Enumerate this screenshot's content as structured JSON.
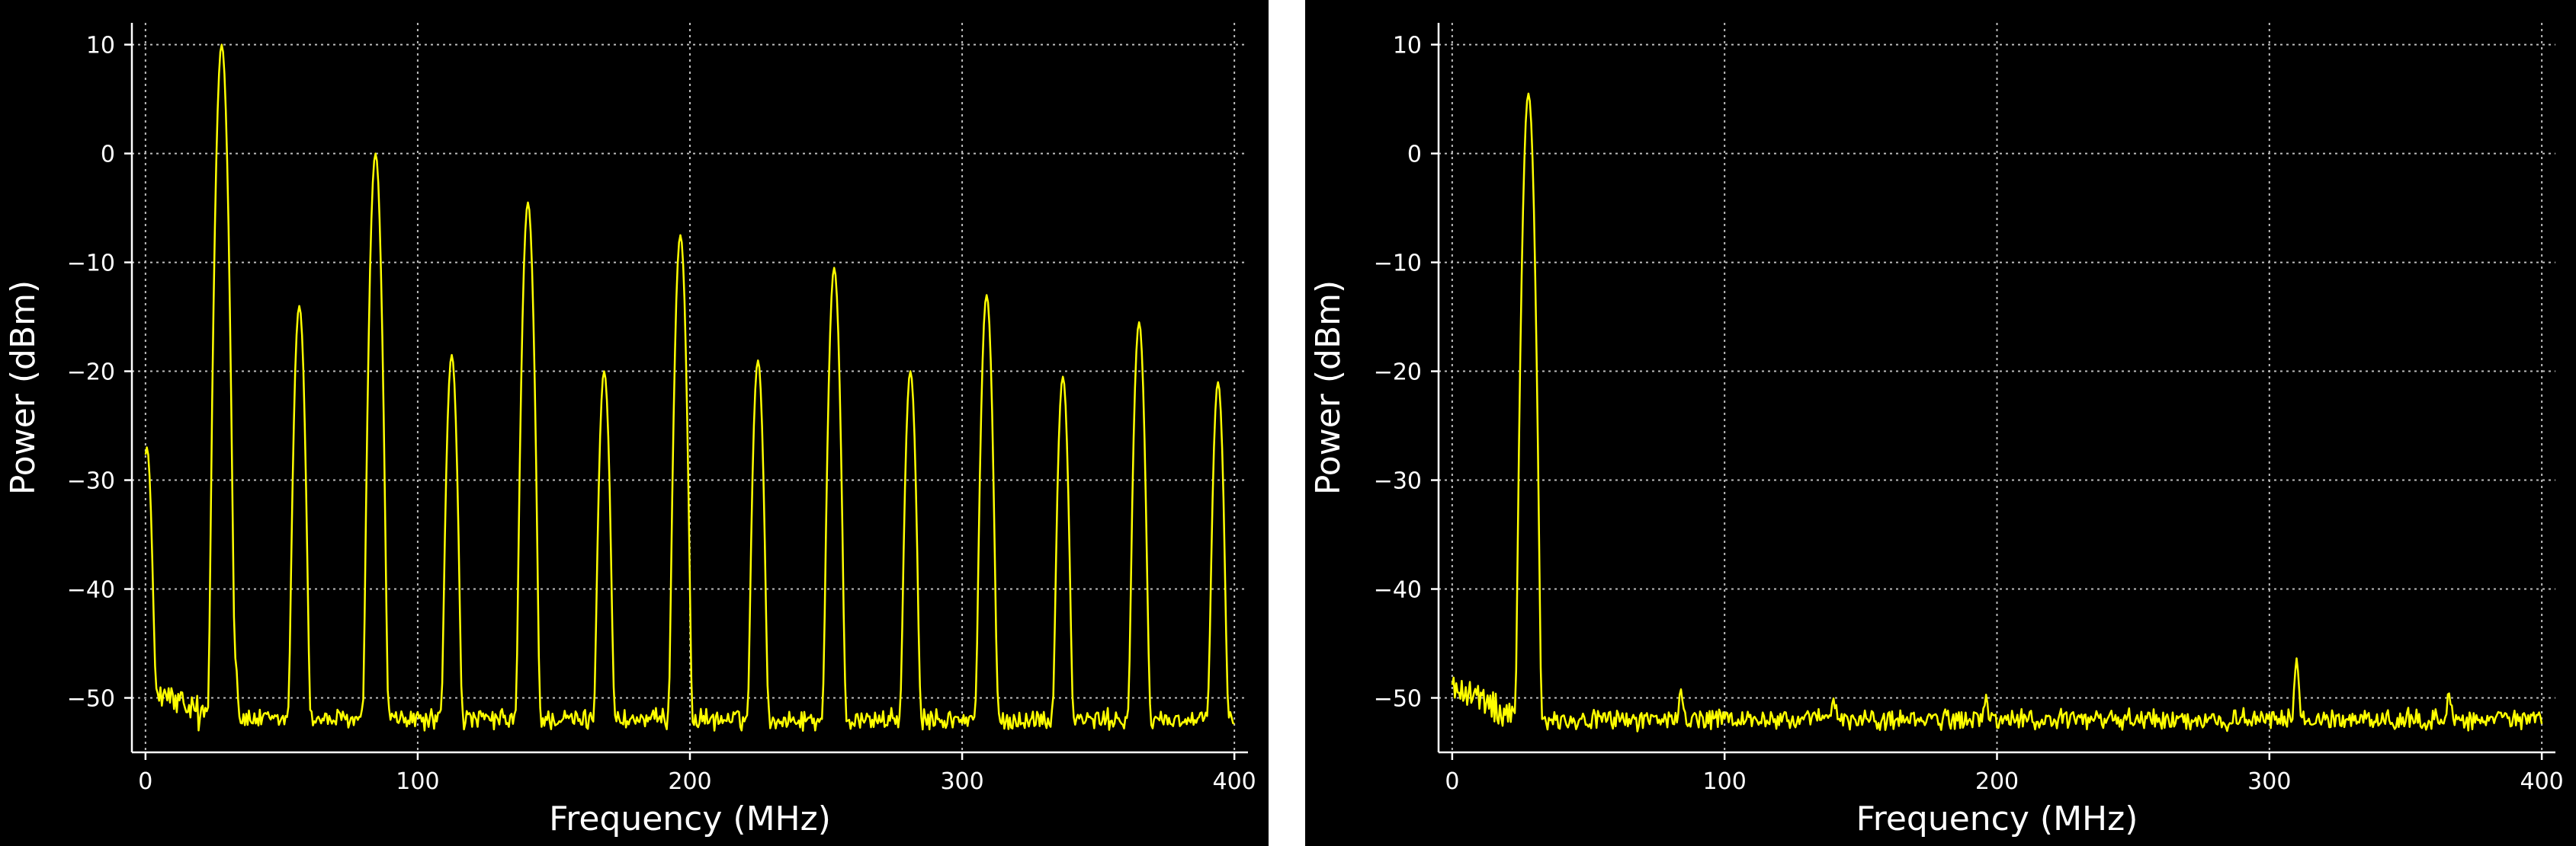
{
  "colors": {
    "background": "#000000",
    "trace": "#ffff00",
    "axis": "#ffffff",
    "grid": "#bdbdbd"
  },
  "chart_data": [
    {
      "type": "line",
      "title": "",
      "xlabel": "Frequency (MHz)",
      "ylabel": "Power (dBm)",
      "xlim": [
        -5,
        405
      ],
      "ylim": [
        -55,
        12
      ],
      "xticks": [
        0,
        100,
        200,
        300,
        400
      ],
      "yticks": [
        10,
        0,
        -10,
        -20,
        -30,
        -40,
        -50
      ],
      "grid": true,
      "noise_floor_dbm": -52,
      "series": [
        {
          "name": "",
          "color": "#ffff00",
          "peaks": [
            {
              "x": 0.5,
              "y": -27
            },
            {
              "x": 28,
              "y": 10
            },
            {
              "x": 56.5,
              "y": -14
            },
            {
              "x": 84.5,
              "y": 0
            },
            {
              "x": 112.5,
              "y": -18.5
            },
            {
              "x": 140.5,
              "y": -4.5
            },
            {
              "x": 168.5,
              "y": -20
            },
            {
              "x": 196.5,
              "y": -7.5
            },
            {
              "x": 225,
              "y": -19
            },
            {
              "x": 253,
              "y": -10.5
            },
            {
              "x": 281,
              "y": -20
            },
            {
              "x": 309,
              "y": -13
            },
            {
              "x": 337,
              "y": -20.5
            },
            {
              "x": 365,
              "y": -15.5
            },
            {
              "x": 394,
              "y": -21
            },
            {
              "x": 33,
              "y": -46.5
            },
            {
              "x": 83,
              "y": -48
            },
            {
              "x": 88,
              "y": -48
            },
            {
              "x": 138,
              "y": -48
            },
            {
              "x": 143,
              "y": -47.5
            },
            {
              "x": 194,
              "y": -47.5
            },
            {
              "x": 199,
              "y": -47.5
            },
            {
              "x": 250,
              "y": -48
            },
            {
              "x": 256,
              "y": -48
            },
            {
              "x": 307,
              "y": -49
            },
            {
              "x": 312,
              "y": -49
            },
            {
              "x": 363,
              "y": -49
            },
            {
              "x": 368,
              "y": -49
            }
          ]
        }
      ]
    },
    {
      "type": "line",
      "title": "",
      "xlabel": "Frequency (MHz)",
      "ylabel": "Power (dBm)",
      "xlim": [
        -5,
        405
      ],
      "ylim": [
        -55,
        12
      ],
      "xticks": [
        0,
        100,
        200,
        300,
        400
      ],
      "yticks": [
        10,
        0,
        -10,
        -20,
        -30,
        -40,
        -50
      ],
      "grid": true,
      "noise_floor_dbm": -52,
      "series": [
        {
          "name": "",
          "color": "#ffff00",
          "peaks": [
            {
              "x": 28,
              "y": 5.5
            },
            {
              "x": 84,
              "y": -49.5
            },
            {
              "x": 140,
              "y": -50
            },
            {
              "x": 196,
              "y": -50
            },
            {
              "x": 310,
              "y": -46.5
            },
            {
              "x": 366,
              "y": -49.5
            }
          ]
        }
      ]
    }
  ]
}
